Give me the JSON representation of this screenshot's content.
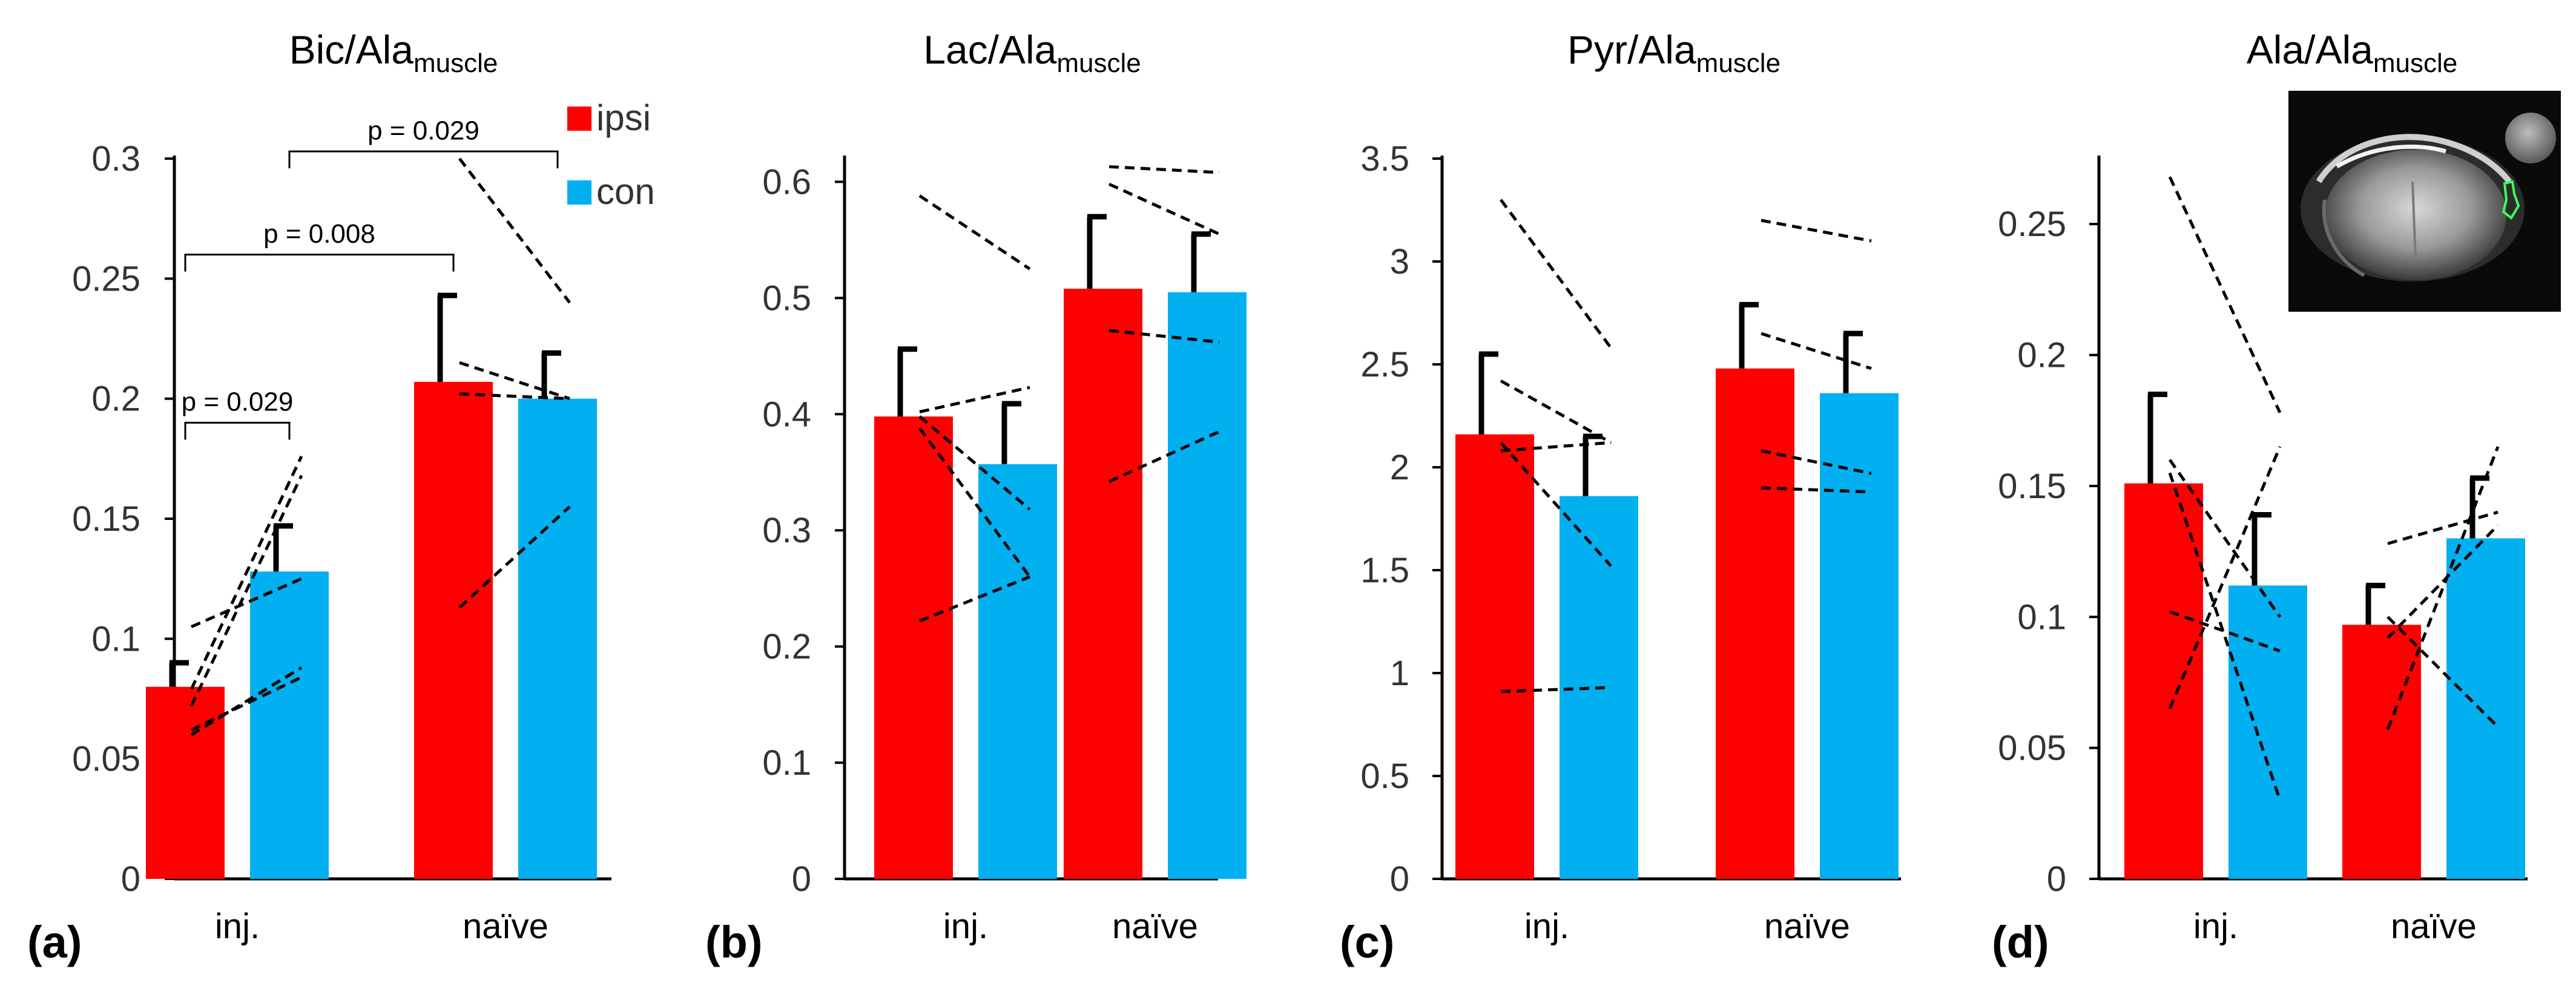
{
  "colors": {
    "ipsi": "#ff0000",
    "con": "#00b0f0",
    "axis": "#000000"
  },
  "legend": [
    {
      "name": "ipsi",
      "color": "#ff0000"
    },
    {
      "name": "con",
      "color": "#00b0f0"
    }
  ],
  "inset_icon": "mri-brain-slice-image",
  "chart_data": [
    {
      "type": "bar",
      "panel": "(a)",
      "title": "Bic/Ala",
      "title_sub": "muscle",
      "categories": [
        "inj.",
        "naïve"
      ],
      "ylim": [
        0,
        0.3
      ],
      "ticks": [
        0,
        0.05,
        0.1,
        0.15,
        0.2,
        0.25,
        0.3
      ],
      "tick_labels": [
        "0",
        "0.05",
        "0.1",
        "0.15",
        "0.2",
        "0.25",
        "0.3"
      ],
      "series": [
        {
          "name": "ipsi",
          "values": [
            0.08,
            0.207
          ],
          "errors": [
            0.01,
            0.036
          ]
        },
        {
          "name": "con",
          "values": [
            0.128,
            0.2
          ],
          "errors": [
            0.019,
            0.019
          ]
        }
      ],
      "paired_lines": [
        {
          "category": "inj.",
          "pairs": [
            [
              0.079,
              0.176
            ],
            [
              0.105,
              0.125
            ],
            [
              0.06,
              0.088
            ],
            [
              0.062,
              0.084
            ],
            [
              0.072,
              0.168
            ]
          ]
        },
        {
          "category": "naïve",
          "pairs": [
            [
              0.3,
              0.24
            ],
            [
              0.215,
              0.2
            ],
            [
              0.202,
              0.2
            ],
            [
              0.113,
              0.155
            ]
          ]
        }
      ],
      "annotations": [
        {
          "text": "p = 0.029",
          "from": "inj. ipsi",
          "to": "inj. con",
          "y": 0.19,
          "label_y": 0.199
        },
        {
          "text": "p = 0.008",
          "from": "inj. ipsi",
          "to": "naïve ipsi",
          "y": 0.26,
          "label_y": 0.269
        },
        {
          "text": "p = 0.029",
          "from": "inj. con",
          "to": "naïve con",
          "y": 0.303,
          "label_y": 0.312
        }
      ],
      "xlabel": "",
      "ylabel": ""
    },
    {
      "type": "bar",
      "panel": "(b)",
      "title": "Lac/Ala",
      "title_sub": "muscle",
      "categories": [
        "inj.",
        "naïve"
      ],
      "ylim": [
        0,
        0.62
      ],
      "ticks": [
        0,
        0.1,
        0.2,
        0.3,
        0.4,
        0.5,
        0.6
      ],
      "tick_labels": [
        "0",
        "0.1",
        "0.2",
        "0.3",
        "0.4",
        "0.5",
        "0.6"
      ],
      "series": [
        {
          "name": "ipsi",
          "values": [
            0.398,
            0.508
          ],
          "errors": [
            0.058,
            0.062
          ]
        },
        {
          "name": "con",
          "values": [
            0.357,
            0.505
          ],
          "errors": [
            0.052,
            0.05
          ]
        }
      ],
      "paired_lines": [
        {
          "category": "inj.",
          "pairs": [
            [
              0.588,
              0.525
            ],
            [
              0.402,
              0.423
            ],
            [
              0.398,
              0.318
            ],
            [
              0.388,
              0.26
            ],
            [
              0.222,
              0.26
            ]
          ]
        },
        {
          "category": "naïve",
          "pairs": [
            [
              0.613,
              0.608
            ],
            [
              0.598,
              0.555
            ],
            [
              0.472,
              0.462
            ],
            [
              0.342,
              0.385
            ]
          ]
        }
      ],
      "annotations": [],
      "xlabel": "",
      "ylabel": ""
    },
    {
      "type": "bar",
      "panel": "(c)",
      "title": "Pyr/Ala",
      "title_sub": "muscle",
      "categories": [
        "inj.",
        "naïve"
      ],
      "ylim": [
        0,
        3.5
      ],
      "ticks": [
        0,
        0.5,
        1,
        1.5,
        2,
        2.5,
        3,
        3.5
      ],
      "tick_labels": [
        "0",
        "0.5",
        "1",
        "1.5",
        "2",
        "2.5",
        "3",
        "3.5"
      ],
      "series": [
        {
          "name": "ipsi",
          "values": [
            2.16,
            2.48
          ],
          "errors": [
            0.39,
            0.31
          ]
        },
        {
          "name": "con",
          "values": [
            1.86,
            2.36
          ],
          "errors": [
            0.29,
            0.29
          ]
        }
      ],
      "paired_lines": [
        {
          "category": "inj.",
          "pairs": [
            [
              3.3,
              2.58
            ],
            [
              2.42,
              2.12
            ],
            [
              2.08,
              2.12
            ],
            [
              2.12,
              1.52
            ],
            [
              0.91,
              0.93
            ]
          ]
        },
        {
          "category": "naïve",
          "pairs": [
            [
              3.2,
              3.1
            ],
            [
              2.65,
              2.48
            ],
            [
              2.08,
              1.97
            ],
            [
              1.9,
              1.88
            ]
          ]
        }
      ],
      "annotations": [],
      "xlabel": "",
      "ylabel": ""
    },
    {
      "type": "bar",
      "panel": "(d)",
      "title": "Ala/Ala",
      "title_sub": "muscle",
      "categories": [
        "inj.",
        "naïve"
      ],
      "ylim": [
        0,
        0.275
      ],
      "ticks": [
        0,
        0.05,
        0.1,
        0.15,
        0.2,
        0.25
      ],
      "tick_labels": [
        "0",
        "0.05",
        "0.1",
        "0.15",
        "0.2",
        "0.25"
      ],
      "series": [
        {
          "name": "ipsi",
          "values": [
            0.151,
            0.097
          ],
          "errors": [
            0.034,
            0.015
          ]
        },
        {
          "name": "con",
          "values": [
            0.112,
            0.13
          ],
          "errors": [
            0.027,
            0.023
          ]
        }
      ],
      "paired_lines": [
        {
          "category": "inj.",
          "pairs": [
            [
              0.268,
              0.178
            ],
            [
              0.155,
              0.03
            ],
            [
              0.102,
              0.087
            ],
            [
              0.065,
              0.165
            ],
            [
              0.16,
              0.1
            ]
          ]
        },
        {
          "category": "naïve",
          "pairs": [
            [
              0.128,
              0.14
            ],
            [
              0.057,
              0.165
            ],
            [
              0.092,
              0.135
            ],
            [
              0.1,
              0.058
            ]
          ]
        }
      ],
      "annotations": [],
      "xlabel": "",
      "ylabel": ""
    }
  ]
}
